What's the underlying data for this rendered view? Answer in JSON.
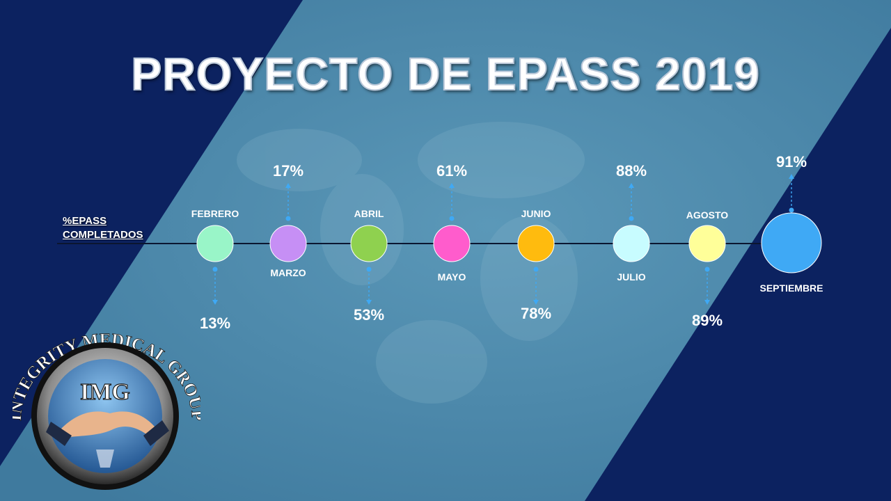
{
  "title": "PROYECTO DE EPASS 2019",
  "row_label_line1": "%EPASS",
  "row_label_line2": "COMPLETADOS",
  "logo": {
    "arc_text": "INTEGRITY MEDICAL GROUP",
    "monogram": "IMG"
  },
  "colors": {
    "background": "#0c2260",
    "band": "#4a86a8",
    "line": "#0b1630",
    "pointer": "#3fa9f5"
  },
  "chart_data": {
    "type": "timeline",
    "title": "PROYECTO DE EPASS 2019",
    "ylabel": "%EPASS COMPLETADOS",
    "categories": [
      "FEBRERO",
      "MARZO",
      "ABRIL",
      "MAYO",
      "JUNIO",
      "JULIO",
      "AGOSTO",
      "SEPTIEMBRE"
    ],
    "series": [
      {
        "values": [
          13,
          17,
          53,
          61,
          78,
          88,
          89,
          91
        ],
        "value_labels": [
          "13%",
          "17%",
          "53%",
          "61%",
          "78%",
          "88%",
          "89%",
          "91%"
        ]
      }
    ],
    "marker_colors": [
      "#99f5c8",
      "#c68ff5",
      "#8fd14f",
      "#ff5ccc",
      "#ffbb0e",
      "#c8fcff",
      "#ffff99",
      "#3fa9f5"
    ],
    "month_label_side": [
      "above",
      "below",
      "above",
      "below",
      "above",
      "below",
      "above",
      "below"
    ],
    "value_label_side": [
      "below",
      "above",
      "below",
      "above",
      "below",
      "above",
      "below",
      "above"
    ]
  }
}
